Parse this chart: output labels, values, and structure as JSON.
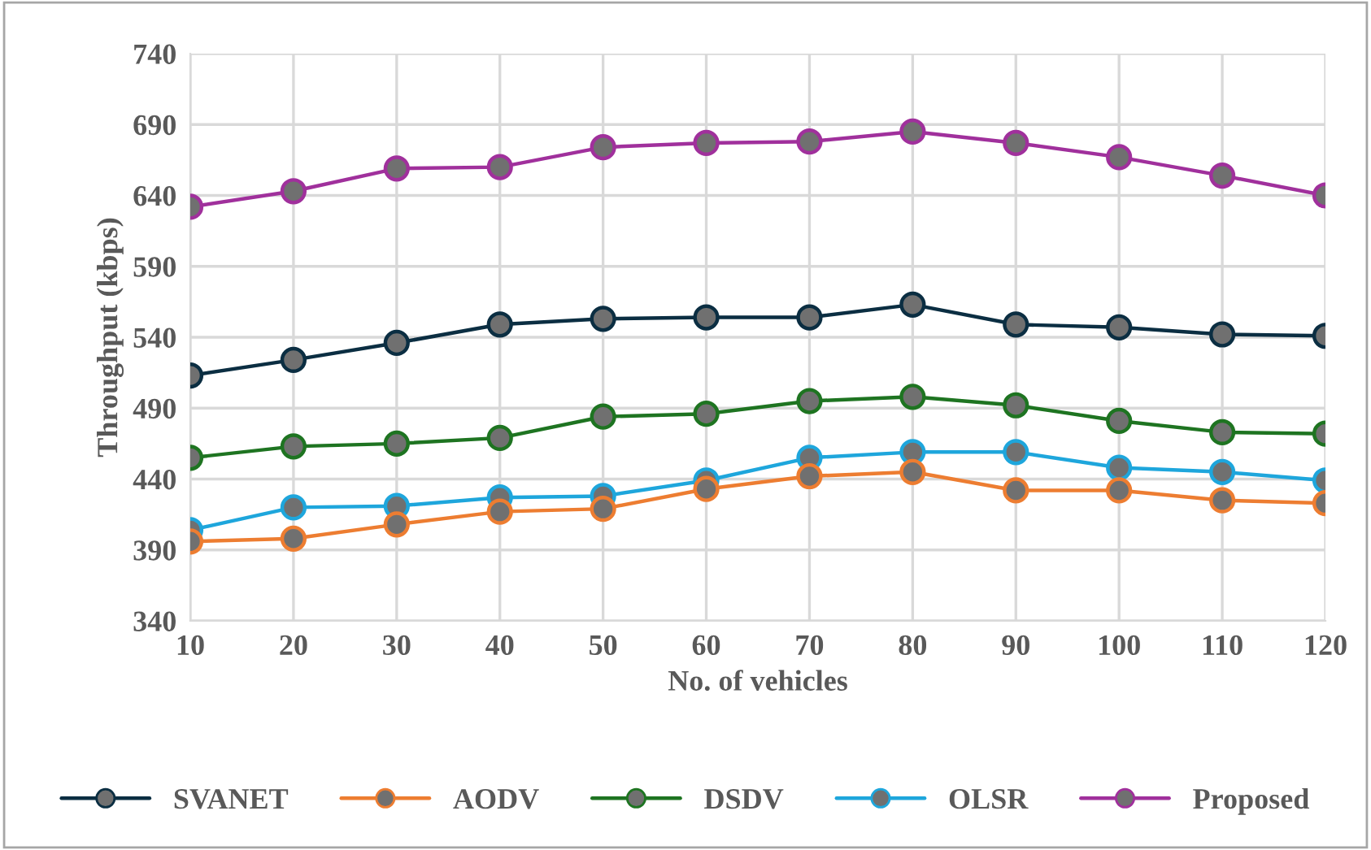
{
  "chart_data": {
    "type": "line",
    "xlabel": "No. of vehicles",
    "ylabel": "Throughput (kbps)",
    "x": [
      10,
      20,
      30,
      40,
      50,
      60,
      70,
      80,
      90,
      100,
      110,
      120
    ],
    "xlim": [
      10,
      120
    ],
    "xticks": [
      10,
      20,
      30,
      40,
      50,
      60,
      70,
      80,
      90,
      100,
      110,
      120
    ],
    "ylim": [
      340,
      740
    ],
    "yticks": [
      340,
      390,
      440,
      490,
      540,
      590,
      640,
      690,
      740
    ],
    "grid": true,
    "legend": "bottom",
    "marker": "circle",
    "line_style": "solid",
    "series": [
      {
        "name": "SVANET",
        "color": "#0b2e42",
        "values": [
          513,
          524,
          536,
          549,
          553,
          554,
          554,
          563,
          549,
          547,
          542,
          541
        ]
      },
      {
        "name": "AODV",
        "color": "#ed7d31",
        "values": [
          396,
          398,
          408,
          417,
          419,
          433,
          442,
          445,
          432,
          432,
          425,
          423
        ]
      },
      {
        "name": "DSDV",
        "color": "#1e7421",
        "values": [
          455,
          463,
          465,
          469,
          484,
          486,
          495,
          498,
          492,
          481,
          473,
          472
        ]
      },
      {
        "name": "OLSR",
        "color": "#1ea6dc",
        "values": [
          404,
          420,
          421,
          427,
          428,
          439,
          455,
          459,
          459,
          448,
          445,
          439
        ]
      },
      {
        "name": "Proposed",
        "color": "#a0309c",
        "values": [
          632,
          643,
          659,
          660,
          674,
          677,
          678,
          685,
          677,
          667,
          654,
          640
        ]
      }
    ]
  }
}
